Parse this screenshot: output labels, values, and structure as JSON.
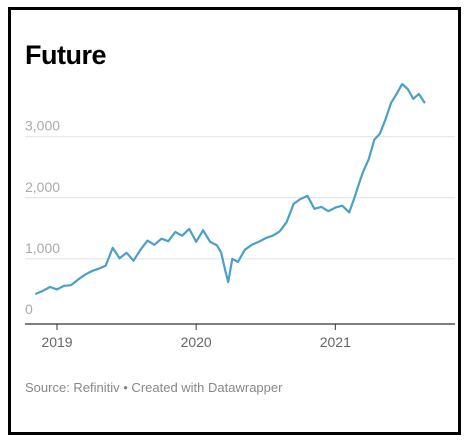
{
  "title": "Future",
  "source_line": "Source: Refinitiv • Created with Datawrapper",
  "colors": {
    "line": "#4aa0c9",
    "grid": "#e2e2e2",
    "axis": "#333333"
  },
  "chart_data": {
    "type": "line",
    "title": "Future",
    "xlabel": "",
    "ylabel": "",
    "ylim": [
      0,
      3600
    ],
    "yticks": [
      {
        "value": 0,
        "label": "0"
      },
      {
        "value": 1000,
        "label": "1,000"
      },
      {
        "value": 2000,
        "label": "2,000"
      },
      {
        "value": 3000,
        "label": "3,000"
      }
    ],
    "xlim": [
      2018.77,
      2021.86
    ],
    "xticks": [
      {
        "value": 2019,
        "label": "2019"
      },
      {
        "value": 2020,
        "label": "2020"
      },
      {
        "value": 2021,
        "label": "2021"
      }
    ],
    "grid": true,
    "series": [
      {
        "color": "#4aa0c9",
        "points": [
          [
            2018.85,
            430
          ],
          [
            2018.9,
            480
          ],
          [
            2018.95,
            540
          ],
          [
            2019.0,
            500
          ],
          [
            2019.05,
            560
          ],
          [
            2019.1,
            570
          ],
          [
            2019.15,
            660
          ],
          [
            2019.2,
            740
          ],
          [
            2019.25,
            800
          ],
          [
            2019.3,
            840
          ],
          [
            2019.35,
            890
          ],
          [
            2019.4,
            1180
          ],
          [
            2019.45,
            1010
          ],
          [
            2019.5,
            1100
          ],
          [
            2019.55,
            970
          ],
          [
            2019.6,
            1150
          ],
          [
            2019.65,
            1300
          ],
          [
            2019.7,
            1230
          ],
          [
            2019.75,
            1330
          ],
          [
            2019.8,
            1290
          ],
          [
            2019.85,
            1440
          ],
          [
            2019.9,
            1380
          ],
          [
            2019.95,
            1490
          ],
          [
            2020.0,
            1280
          ],
          [
            2020.05,
            1470
          ],
          [
            2020.1,
            1280
          ],
          [
            2020.15,
            1220
          ],
          [
            2020.18,
            1100
          ],
          [
            2020.21,
            800
          ],
          [
            2020.23,
            620
          ],
          [
            2020.26,
            1000
          ],
          [
            2020.3,
            950
          ],
          [
            2020.35,
            1150
          ],
          [
            2020.4,
            1230
          ],
          [
            2020.45,
            1280
          ],
          [
            2020.5,
            1340
          ],
          [
            2020.55,
            1380
          ],
          [
            2020.6,
            1450
          ],
          [
            2020.65,
            1600
          ],
          [
            2020.7,
            1900
          ],
          [
            2020.75,
            1980
          ],
          [
            2020.8,
            2030
          ],
          [
            2020.85,
            1820
          ],
          [
            2020.9,
            1850
          ],
          [
            2020.95,
            1780
          ],
          [
            2021.0,
            1840
          ],
          [
            2021.05,
            1870
          ],
          [
            2021.1,
            1760
          ],
          [
            2021.13,
            1950
          ],
          [
            2021.17,
            2230
          ],
          [
            2021.2,
            2430
          ],
          [
            2021.24,
            2630
          ],
          [
            2021.28,
            2950
          ],
          [
            2021.32,
            3050
          ],
          [
            2021.36,
            3280
          ],
          [
            2021.4,
            3550
          ],
          [
            2021.44,
            3700
          ],
          [
            2021.48,
            3860
          ],
          [
            2021.52,
            3780
          ],
          [
            2021.56,
            3620
          ],
          [
            2021.6,
            3700
          ],
          [
            2021.64,
            3560
          ]
        ]
      }
    ]
  }
}
